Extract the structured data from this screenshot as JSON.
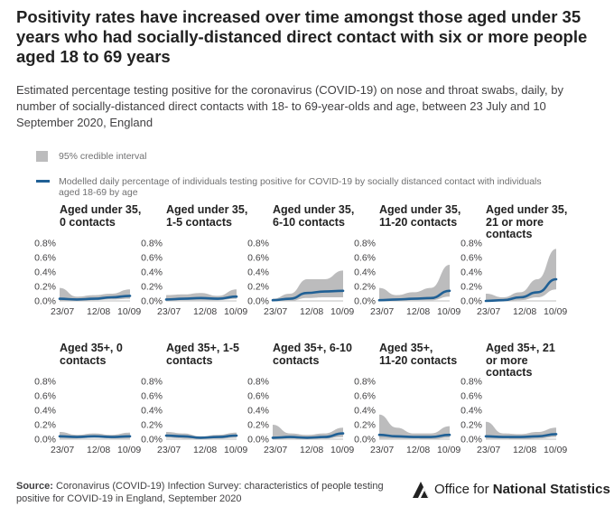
{
  "header": {
    "title": "Positivity rates have increased over time amongst those aged under 35 years who had socially-distanced direct contact with six or more people aged 18 to 69 years",
    "subtitle": "Estimated percentage testing positive for the coronavirus (COVID-19) on nose and throat swabs, daily, by number of socially-distanced direct contacts with 18- to 69-year-olds and age, between 23 July and 10 September 2020, England"
  },
  "legend": {
    "ci_label": "95% credible interval",
    "line_label": "Modelled daily percentage of individuals testing positive for COVID-19 by socially distanced contact with individuals aged 18-69 by age"
  },
  "colors": {
    "line": "#206095",
    "interval": "#bcbcbd",
    "axis": "#bfbfbf"
  },
  "source": {
    "label": "Source:",
    "text": "Coronavirus (COVID-19) Infection Survey: characteristics of people testing positive for COVID-19 in England, September 2020"
  },
  "logo": {
    "prefix": "Office for ",
    "bold": "National Statistics",
    "icon": "ons-logo-icon"
  },
  "chart_data": [
    {
      "type": "area",
      "title_lines": [
        "Aged under 35,",
        "0 contacts"
      ],
      "x": [
        "2020-07-23",
        "2020-08-04",
        "2020-08-16",
        "2020-08-28",
        "2020-09-10"
      ],
      "tick_labels": [
        "23/07",
        "12/08",
        "10/09"
      ],
      "y_ticks": [
        "0.0%",
        "0.2%",
        "0.4%",
        "0.6%",
        "0.8%"
      ],
      "ylim": [
        0,
        0.8
      ],
      "values": [
        0.03,
        0.02,
        0.03,
        0.05,
        0.07
      ],
      "lower": [
        0.0,
        0.0,
        0.01,
        0.02,
        0.03
      ],
      "upper": [
        0.18,
        0.06,
        0.08,
        0.1,
        0.16
      ]
    },
    {
      "type": "area",
      "title_lines": [
        "Aged under 35,",
        "1-5 contacts"
      ],
      "x": [
        "2020-07-23",
        "2020-08-04",
        "2020-08-16",
        "2020-08-28",
        "2020-09-10"
      ],
      "tick_labels": [
        "23/07",
        "12/08",
        "10/09"
      ],
      "y_ticks": [
        "0.0%",
        "0.2%",
        "0.4%",
        "0.6%",
        "0.8%"
      ],
      "ylim": [
        0,
        0.8
      ],
      "values": [
        0.02,
        0.03,
        0.04,
        0.03,
        0.06
      ],
      "lower": [
        0.0,
        0.01,
        0.01,
        0.01,
        0.03
      ],
      "upper": [
        0.08,
        0.09,
        0.11,
        0.07,
        0.16
      ]
    },
    {
      "type": "area",
      "title_lines": [
        "Aged under 35,",
        "6-10 contacts"
      ],
      "x": [
        "2020-07-23",
        "2020-08-04",
        "2020-08-16",
        "2020-08-28",
        "2020-09-10"
      ],
      "tick_labels": [
        "23/07",
        "12/08",
        "10/09"
      ],
      "y_ticks": [
        "0.0%",
        "0.2%",
        "0.4%",
        "0.6%",
        "0.8%"
      ],
      "ylim": [
        0,
        0.8
      ],
      "values": [
        0.01,
        0.03,
        0.11,
        0.13,
        0.14
      ],
      "lower": [
        0.0,
        0.0,
        0.04,
        0.05,
        0.05
      ],
      "upper": [
        0.03,
        0.1,
        0.3,
        0.3,
        0.42
      ]
    },
    {
      "type": "area",
      "title_lines": [
        "Aged under 35,",
        "11-20 contacts"
      ],
      "x": [
        "2020-07-23",
        "2020-08-04",
        "2020-08-16",
        "2020-08-28",
        "2020-09-10"
      ],
      "tick_labels": [
        "23/07",
        "12/08",
        "10/09"
      ],
      "y_ticks": [
        "0.0%",
        "0.2%",
        "0.4%",
        "0.6%",
        "0.8%"
      ],
      "ylim": [
        0,
        0.8
      ],
      "values": [
        0.01,
        0.02,
        0.03,
        0.04,
        0.14
      ],
      "lower": [
        0.0,
        0.0,
        0.01,
        0.01,
        0.06
      ],
      "upper": [
        0.18,
        0.08,
        0.12,
        0.18,
        0.5
      ]
    },
    {
      "type": "area",
      "title_lines": [
        "Aged under 35,",
        "21 or more",
        "contacts"
      ],
      "x": [
        "2020-07-23",
        "2020-08-04",
        "2020-08-16",
        "2020-08-28",
        "2020-09-10"
      ],
      "tick_labels": [
        "23/07",
        "12/08",
        "10/09"
      ],
      "y_ticks": [
        "0.0%",
        "0.2%",
        "0.4%",
        "0.6%",
        "0.8%"
      ],
      "ylim": [
        0,
        0.8
      ],
      "values": [
        0.0,
        0.01,
        0.05,
        0.12,
        0.3
      ],
      "lower": [
        0.0,
        0.0,
        0.01,
        0.05,
        0.16
      ],
      "upper": [
        0.1,
        0.05,
        0.12,
        0.3,
        0.72
      ]
    },
    {
      "type": "area",
      "title_lines": [
        "Aged 35+, 0",
        "contacts"
      ],
      "x": [
        "2020-07-23",
        "2020-08-04",
        "2020-08-16",
        "2020-08-28",
        "2020-09-10"
      ],
      "tick_labels": [
        "23/07",
        "12/08",
        "10/09"
      ],
      "y_ticks": [
        "0.0%",
        "0.2%",
        "0.4%",
        "0.6%",
        "0.8%"
      ],
      "ylim": [
        0,
        0.8
      ],
      "values": [
        0.04,
        0.03,
        0.04,
        0.03,
        0.04
      ],
      "lower": [
        0.01,
        0.01,
        0.02,
        0.01,
        0.01
      ],
      "upper": [
        0.1,
        0.06,
        0.08,
        0.06,
        0.09
      ]
    },
    {
      "type": "area",
      "title_lines": [
        "Aged 35+, 1-5",
        "contacts"
      ],
      "x": [
        "2020-07-23",
        "2020-08-04",
        "2020-08-16",
        "2020-08-28",
        "2020-09-10"
      ],
      "tick_labels": [
        "23/07",
        "12/08",
        "10/09"
      ],
      "y_ticks": [
        "0.0%",
        "0.2%",
        "0.4%",
        "0.6%",
        "0.8%"
      ],
      "ylim": [
        0,
        0.8
      ],
      "values": [
        0.05,
        0.04,
        0.02,
        0.03,
        0.05
      ],
      "lower": [
        0.02,
        0.01,
        0.01,
        0.01,
        0.02
      ],
      "upper": [
        0.1,
        0.08,
        0.04,
        0.06,
        0.09
      ]
    },
    {
      "type": "area",
      "title_lines": [
        "Aged 35+, 6-10",
        "contacts"
      ],
      "x": [
        "2020-07-23",
        "2020-08-04",
        "2020-08-16",
        "2020-08-28",
        "2020-09-10"
      ],
      "tick_labels": [
        "23/07",
        "12/08",
        "10/09"
      ],
      "y_ticks": [
        "0.0%",
        "0.2%",
        "0.4%",
        "0.6%",
        "0.8%"
      ],
      "ylim": [
        0,
        0.8
      ],
      "values": [
        0.02,
        0.03,
        0.02,
        0.03,
        0.08
      ],
      "lower": [
        0.0,
        0.01,
        0.0,
        0.01,
        0.03
      ],
      "upper": [
        0.2,
        0.08,
        0.06,
        0.08,
        0.16
      ]
    },
    {
      "type": "area",
      "title_lines": [
        "Aged 35+,",
        "11-20 contacts"
      ],
      "x": [
        "2020-07-23",
        "2020-08-04",
        "2020-08-16",
        "2020-08-28",
        "2020-09-10"
      ],
      "tick_labels": [
        "23/07",
        "12/08",
        "10/09"
      ],
      "y_ticks": [
        "0.0%",
        "0.2%",
        "0.4%",
        "0.6%",
        "0.8%"
      ],
      "ylim": [
        0,
        0.8
      ],
      "values": [
        0.06,
        0.04,
        0.03,
        0.03,
        0.06
      ],
      "lower": [
        0.01,
        0.01,
        0.01,
        0.0,
        0.02
      ],
      "upper": [
        0.34,
        0.16,
        0.08,
        0.08,
        0.18
      ]
    },
    {
      "type": "area",
      "title_lines": [
        "Aged 35+, 21",
        "or more",
        "contacts"
      ],
      "x": [
        "2020-07-23",
        "2020-08-04",
        "2020-08-16",
        "2020-08-28",
        "2020-09-10"
      ],
      "tick_labels": [
        "23/07",
        "12/08",
        "10/09"
      ],
      "y_ticks": [
        "0.0%",
        "0.2%",
        "0.4%",
        "0.6%",
        "0.8%"
      ],
      "ylim": [
        0,
        0.8
      ],
      "values": [
        0.04,
        0.03,
        0.03,
        0.04,
        0.07
      ],
      "lower": [
        0.01,
        0.01,
        0.0,
        0.01,
        0.03
      ],
      "upper": [
        0.24,
        0.08,
        0.07,
        0.1,
        0.16
      ]
    }
  ]
}
